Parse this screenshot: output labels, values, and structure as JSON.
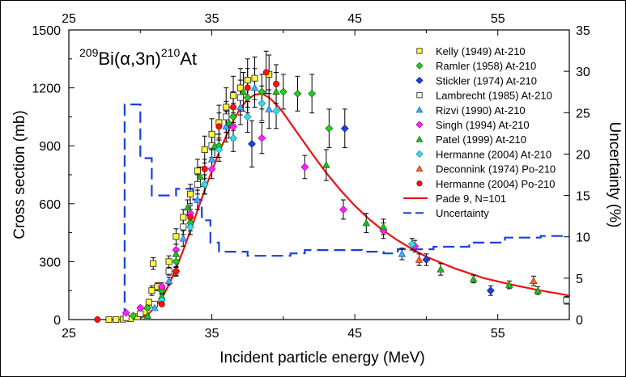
{
  "chart_data": {
    "type": "scatter",
    "title": "",
    "reaction": {
      "pre_sup": "209",
      "main": "Bi(α,3n)",
      "post_sup": "210",
      "suffix": "At"
    },
    "xlabel": "Incident particle energy (MeV)",
    "ylabel_left": "Cross section (mb)",
    "ylabel_right": "Uncertainty (%)",
    "xlim": [
      25,
      60
    ],
    "ylim_left": [
      0,
      1500
    ],
    "ylim_right": [
      0,
      35
    ],
    "x_ticks_bottom": [
      "25",
      "35",
      "45",
      "55"
    ],
    "x_ticks_top": [
      "25",
      "35",
      "45",
      "55"
    ],
    "y_ticks_left": [
      "0",
      "300",
      "600",
      "900",
      "1200",
      "1500"
    ],
    "y_ticks_right": [
      "0",
      "5",
      "10",
      "15",
      "20",
      "25",
      "30",
      "35"
    ],
    "legend_position": "top-right",
    "series": [
      {
        "name": "Kelly (1949) At-210",
        "marker": "square",
        "color": "#ffff33",
        "stroke": "#333333",
        "points": [
          [
            27.8,
            0,
            0
          ],
          [
            28.3,
            0,
            0
          ],
          [
            28.8,
            2,
            0
          ],
          [
            29.3,
            5,
            0
          ],
          [
            29.8,
            15,
            4
          ],
          [
            30.3,
            40,
            8
          ],
          [
            30.6,
            90,
            15
          ],
          [
            30.8,
            150,
            25
          ],
          [
            30.9,
            290,
            30
          ],
          [
            31.2,
            170,
            20
          ],
          [
            31.5,
            160,
            20
          ],
          [
            32.0,
            300,
            30
          ],
          [
            32.5,
            430,
            40
          ],
          [
            33.0,
            530,
            40
          ],
          [
            33.5,
            650,
            50
          ],
          [
            34.0,
            770,
            60
          ],
          [
            34.5,
            880,
            70
          ],
          [
            35.0,
            960,
            80
          ],
          [
            35.5,
            1020,
            90
          ],
          [
            36.0,
            1100,
            100
          ],
          [
            36.5,
            1160,
            100
          ],
          [
            37.0,
            1200,
            100
          ],
          [
            37.5,
            1240,
            110
          ],
          [
            38.0,
            1250,
            110
          ],
          [
            39.0,
            1270,
            100
          ]
        ]
      },
      {
        "name": "Ramler (1958) At-210",
        "marker": "diamond",
        "color": "#22cc22",
        "stroke": "#0a6a0a",
        "points": [
          [
            29.5,
            20,
            5
          ],
          [
            30.5,
            60,
            10
          ],
          [
            31.5,
            150,
            20
          ],
          [
            32.5,
            300,
            30
          ],
          [
            33.5,
            500,
            40
          ],
          [
            34.5,
            700,
            50
          ],
          [
            35.5,
            900,
            60
          ],
          [
            36.5,
            1050,
            70
          ],
          [
            37.5,
            1150,
            80
          ],
          [
            38.5,
            1180,
            90
          ],
          [
            40.0,
            1180,
            90
          ],
          [
            41.0,
            1170,
            90
          ],
          [
            42.0,
            1170,
            100
          ],
          [
            43.2,
            990,
            100
          ]
        ]
      },
      {
        "name": "Stickler (1974) At-210",
        "marker": "diamond",
        "color": "#1f3fe0",
        "stroke": "#0a1a80",
        "points": [
          [
            37.8,
            910,
            120
          ],
          [
            44.3,
            990,
            100
          ],
          [
            50.0,
            310,
            30
          ],
          [
            54.5,
            150,
            25
          ]
        ]
      },
      {
        "name": "Lambrecht (1985) At-210",
        "marker": "square",
        "color": "#ffffff",
        "stroke": "#333333",
        "points": [
          [
            29.0,
            10,
            2
          ],
          [
            30.0,
            30,
            5
          ],
          [
            31.0,
            80,
            10
          ],
          [
            32.0,
            250,
            20
          ],
          [
            33.0,
            480,
            40
          ],
          [
            34.0,
            700,
            50
          ],
          [
            35.0,
            900,
            60
          ],
          [
            36.0,
            1050,
            80
          ],
          [
            37.0,
            1150,
            90
          ],
          [
            59.8,
            100,
            20
          ]
        ]
      },
      {
        "name": "Rizvi (1990) At-210",
        "marker": "triangle",
        "color": "#44aaff",
        "stroke": "#1060c0",
        "points": [
          [
            31.0,
            60,
            10
          ],
          [
            32.0,
            200,
            20
          ],
          [
            33.0,
            420,
            40
          ],
          [
            34.0,
            620,
            50
          ],
          [
            35.0,
            830,
            60
          ],
          [
            36.0,
            1000,
            80
          ],
          [
            37.0,
            1100,
            90
          ],
          [
            38.0,
            1200,
            100
          ],
          [
            39.0,
            1090,
            100
          ],
          [
            48.3,
            340,
            30
          ]
        ]
      },
      {
        "name": "Singh (1994) At-210",
        "marker": "diamond",
        "color": "#ff22ff",
        "stroke": "#a000a0",
        "points": [
          [
            29.0,
            35,
            5
          ],
          [
            30.0,
            60,
            10
          ],
          [
            31.5,
            170,
            20
          ],
          [
            32.5,
            360,
            30
          ],
          [
            33.5,
            550,
            40
          ],
          [
            35.0,
            780,
            50
          ],
          [
            36.5,
            1000,
            70
          ],
          [
            38.5,
            940,
            80
          ],
          [
            41.5,
            790,
            60
          ],
          [
            44.2,
            570,
            50
          ],
          [
            47.0,
            460,
            40
          ],
          [
            49.2,
            380,
            30
          ]
        ]
      },
      {
        "name": "Patel (1999) At-210",
        "marker": "triangle",
        "color": "#22bb22",
        "stroke": "#0a6a0a",
        "points": [
          [
            30.5,
            20,
            5
          ],
          [
            31.5,
            120,
            15
          ],
          [
            32.5,
            340,
            30
          ],
          [
            33.3,
            580,
            40
          ],
          [
            34.2,
            740,
            50
          ],
          [
            35.2,
            900,
            60
          ],
          [
            36.2,
            1020,
            80
          ],
          [
            37.2,
            1180,
            100
          ],
          [
            39.5,
            1180,
            100
          ],
          [
            43.0,
            800,
            80
          ],
          [
            45.8,
            500,
            50
          ],
          [
            47.0,
            480,
            40
          ],
          [
            51.0,
            260,
            30
          ],
          [
            53.3,
            210,
            20
          ],
          [
            55.8,
            180,
            20
          ],
          [
            57.8,
            150,
            20
          ]
        ]
      },
      {
        "name": "Hermanne (2004) At-210",
        "marker": "diamond",
        "color": "#33ddee",
        "stroke": "#118899",
        "points": [
          [
            31.5,
            100,
            15
          ],
          [
            32.5,
            250,
            25
          ],
          [
            33.5,
            480,
            40
          ],
          [
            34.5,
            700,
            50
          ],
          [
            35.5,
            880,
            60
          ],
          [
            36.5,
            940,
            70
          ],
          [
            37.5,
            1050,
            80
          ],
          [
            38.5,
            1120,
            90
          ],
          [
            39.5,
            1080,
            90
          ],
          [
            49.0,
            390,
            30
          ]
        ]
      },
      {
        "name": "Deconnink (1974) Po-210",
        "marker": "triangle",
        "color": "#ff6633",
        "stroke": "#aa2200",
        "points": [
          [
            49.5,
            310,
            30
          ],
          [
            57.5,
            200,
            25
          ]
        ]
      },
      {
        "name": "Hermanne (2004) Po-210",
        "marker": "circle",
        "color": "#ff1111",
        "stroke": "#990000",
        "points": [
          [
            27.0,
            0,
            0
          ],
          [
            31.5,
            80,
            10
          ],
          [
            32.5,
            250,
            20
          ],
          [
            33.5,
            530,
            40
          ],
          [
            34.5,
            780,
            50
          ],
          [
            35.5,
            1000,
            70
          ],
          [
            36.5,
            1100,
            80
          ],
          [
            37.5,
            1200,
            100
          ],
          [
            38.8,
            1280,
            110
          ],
          [
            39.5,
            1220,
            100
          ]
        ]
      }
    ],
    "fit_line": {
      "name": "Pade 9, N=101",
      "color": "#ee1111",
      "points": [
        [
          28.9,
          0
        ],
        [
          29.5,
          2
        ],
        [
          30.0,
          8
        ],
        [
          30.5,
          25
        ],
        [
          31.0,
          60
        ],
        [
          31.5,
          110
        ],
        [
          32.0,
          180
        ],
        [
          32.5,
          265
        ],
        [
          33.0,
          360
        ],
        [
          33.5,
          460
        ],
        [
          34.0,
          565
        ],
        [
          34.5,
          670
        ],
        [
          35.0,
          770
        ],
        [
          35.5,
          865
        ],
        [
          36.0,
          950
        ],
        [
          36.5,
          1030
        ],
        [
          37.0,
          1095
        ],
        [
          37.5,
          1140
        ],
        [
          38.0,
          1165
        ],
        [
          38.5,
          1170
        ],
        [
          39.0,
          1150
        ],
        [
          39.5,
          1115
        ],
        [
          40.0,
          1070
        ],
        [
          41.0,
          965
        ],
        [
          42.0,
          860
        ],
        [
          43.0,
          760
        ],
        [
          44.0,
          670
        ],
        [
          45.0,
          590
        ],
        [
          46.0,
          520
        ],
        [
          47.0,
          460
        ],
        [
          48.0,
          410
        ],
        [
          49.0,
          365
        ],
        [
          50.0,
          325
        ],
        [
          52.0,
          265
        ],
        [
          54.0,
          215
        ],
        [
          56.0,
          180
        ],
        [
          58.0,
          150
        ],
        [
          60.0,
          125
        ]
      ]
    },
    "uncertainty_line": {
      "name": "Uncertainty",
      "color": "#1a3fe0",
      "points": [
        [
          28.9,
          0
        ],
        [
          28.9,
          26
        ],
        [
          30.0,
          26
        ],
        [
          30.0,
          19.5
        ],
        [
          30.8,
          19.5
        ],
        [
          30.8,
          15
        ],
        [
          32.5,
          15
        ],
        [
          32.5,
          15.8
        ],
        [
          33.7,
          15.8
        ],
        [
          33.7,
          14.5
        ],
        [
          34.3,
          14.5
        ],
        [
          34.3,
          12
        ],
        [
          34.9,
          12
        ],
        [
          34.9,
          9.3
        ],
        [
          35.5,
          9.3
        ],
        [
          35.5,
          8.2
        ],
        [
          37.5,
          8.2
        ],
        [
          37.5,
          7.7
        ],
        [
          40.5,
          7.7
        ],
        [
          40.5,
          8
        ],
        [
          41.5,
          8
        ],
        [
          41.5,
          8.4
        ],
        [
          45.5,
          8.4
        ],
        [
          45.5,
          8.2
        ],
        [
          47.0,
          8.2
        ],
        [
          47.0,
          8
        ],
        [
          48.0,
          8
        ],
        [
          48.0,
          8.5
        ],
        [
          50.5,
          8.5
        ],
        [
          50.5,
          8.8
        ],
        [
          53.0,
          8.8
        ],
        [
          53.0,
          9.3
        ],
        [
          55.5,
          9.3
        ],
        [
          55.5,
          9.9
        ],
        [
          58.0,
          9.9
        ],
        [
          58.0,
          10.1
        ],
        [
          60.0,
          10.1
        ]
      ]
    }
  }
}
